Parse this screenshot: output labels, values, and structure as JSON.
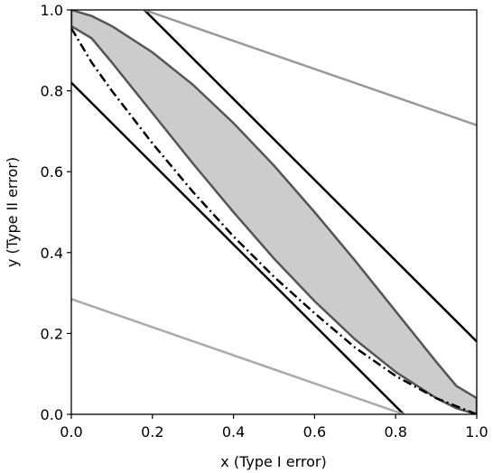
{
  "chart_data": {
    "type": "line",
    "xlabel": "x (Type I error)",
    "ylabel": "y (Type II error)",
    "xlim": [
      0,
      1
    ],
    "ylim": [
      0,
      1
    ],
    "x_ticks": [
      "0.0",
      "0.2",
      "0.4",
      "0.6",
      "0.8",
      "1.0"
    ],
    "y_ticks": [
      "0.0",
      "0.2",
      "0.4",
      "0.6",
      "0.8",
      "1.0"
    ],
    "grid": false,
    "legend": "none",
    "series": [
      {
        "style": "solid",
        "color": "#000000",
        "points": [
          [
            0,
            0.82
          ],
          [
            0.82,
            0
          ]
        ]
      },
      {
        "style": "solid",
        "color": "#000000",
        "points": [
          [
            0.18,
            1.0
          ],
          [
            1.0,
            0.18
          ]
        ]
      },
      {
        "style": "solid",
        "color": "#999999",
        "points": [
          [
            0.18,
            1.0
          ],
          [
            1.0,
            0.715
          ]
        ]
      },
      {
        "style": "solid",
        "color": "#aaaaaa",
        "points": [
          [
            0,
            0.285
          ],
          [
            0.82,
            0
          ]
        ]
      },
      {
        "style": "dashdot",
        "color": "#000000",
        "points": [
          [
            0,
            0.955
          ],
          [
            0.05,
            0.87
          ],
          [
            0.1,
            0.8
          ],
          [
            0.2,
            0.67
          ],
          [
            0.3,
            0.55
          ],
          [
            0.4,
            0.44
          ],
          [
            0.5,
            0.34
          ],
          [
            0.6,
            0.25
          ],
          [
            0.7,
            0.165
          ],
          [
            0.8,
            0.095
          ],
          [
            0.9,
            0.04
          ],
          [
            1.0,
            0
          ]
        ]
      }
    ],
    "region": {
      "fill": "#cccccc",
      "stroke": "#555555",
      "upper_boundary": [
        [
          0,
          1.0
        ],
        [
          0.05,
          0.985
        ],
        [
          0.1,
          0.96
        ],
        [
          0.2,
          0.895
        ],
        [
          0.3,
          0.815
        ],
        [
          0.4,
          0.72
        ],
        [
          0.5,
          0.615
        ],
        [
          0.6,
          0.5
        ],
        [
          0.7,
          0.38
        ],
        [
          0.8,
          0.255
        ],
        [
          0.9,
          0.13
        ],
        [
          0.95,
          0.07
        ],
        [
          1.0,
          0.04
        ]
      ],
      "lower_boundary": [
        [
          1.0,
          0.0
        ],
        [
          0.95,
          0.015
        ],
        [
          0.9,
          0.04
        ],
        [
          0.8,
          0.105
        ],
        [
          0.7,
          0.185
        ],
        [
          0.6,
          0.28
        ],
        [
          0.5,
          0.385
        ],
        [
          0.4,
          0.5
        ],
        [
          0.3,
          0.62
        ],
        [
          0.2,
          0.745
        ],
        [
          0.1,
          0.87
        ],
        [
          0.05,
          0.93
        ],
        [
          0,
          0.96
        ]
      ]
    }
  }
}
